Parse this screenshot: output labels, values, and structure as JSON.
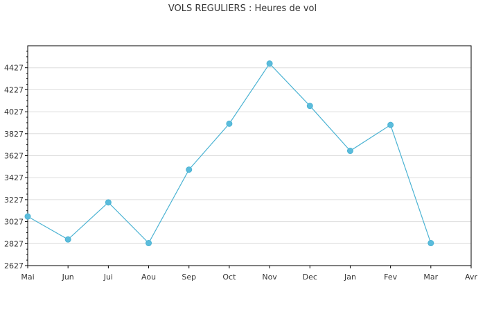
{
  "chart_data": {
    "type": "line",
    "title": "VOLS REGULIERS : Heures de vol",
    "xlabel": "",
    "ylabel": "",
    "categories": [
      "Mai",
      "Jun",
      "Jui",
      "Aou",
      "Sep",
      "Oct",
      "Nov",
      "Dec",
      "Jan",
      "Fev",
      "Mar",
      "Avr"
    ],
    "series": [
      {
        "values": [
          3074,
          2865,
          3202,
          2832,
          3500,
          3918,
          4465,
          4080,
          3671,
          3907,
          2832,
          null
        ]
      }
    ],
    "yticks": [
      2627,
      2827,
      3027,
      3227,
      3427,
      3627,
      3827,
      4027,
      4227,
      4427
    ],
    "ylim": [
      2627,
      4627
    ],
    "grid": true,
    "legend": "none",
    "colors": {
      "line": "#4bb3d3",
      "marker": "#5bbcdc",
      "grid": "#dddddd",
      "axis": "#000000"
    }
  }
}
